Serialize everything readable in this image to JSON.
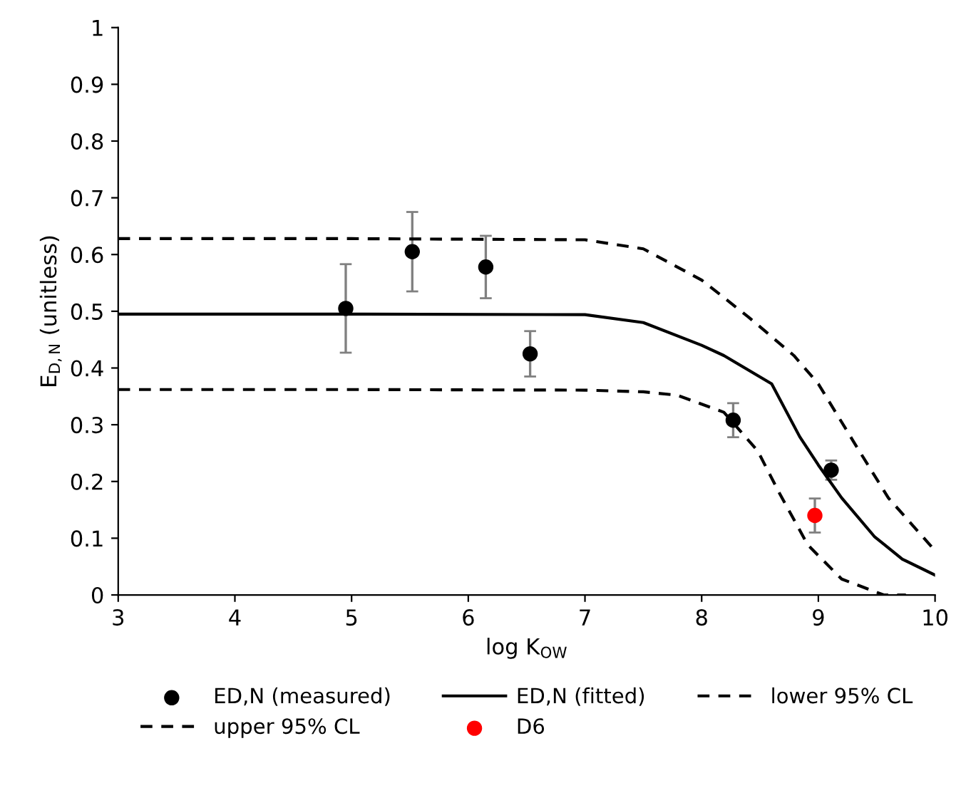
{
  "chart_data": {
    "type": "scatter",
    "xlabel": "log K$_{OW}$",
    "ylabel": "E$_{D,N}$ (unitless)",
    "xlim": [
      3,
      10
    ],
    "ylim": [
      0,
      1
    ],
    "xticks": [
      3,
      4,
      5,
      6,
      7,
      8,
      9,
      10
    ],
    "yticks": [
      0,
      0.1,
      0.2,
      0.3,
      0.4,
      0.5,
      0.6,
      0.7,
      0.8,
      0.9,
      1
    ],
    "grid": false,
    "legend": "bottom",
    "marker": "circle",
    "series": [
      {
        "name": "ED,N (measured)",
        "color": "#000000",
        "x": [
          4.95,
          5.52,
          6.15,
          6.53,
          8.27,
          9.11
        ],
        "values": [
          0.505,
          0.605,
          0.578,
          0.425,
          0.308,
          0.22
        ],
        "errors": [
          0.078,
          0.07,
          0.055,
          0.04,
          0.03,
          0.017
        ]
      },
      {
        "name": "ED,N (fitted)",
        "type": "line",
        "line_style": "solid",
        "marker": "none",
        "color": "#000000",
        "x": [
          3,
          5,
          7,
          7.5,
          8,
          8.19,
          8.6,
          8.84,
          9,
          9.2,
          9.48,
          9.72,
          10
        ],
        "values": [
          0.495,
          0.495,
          0.494,
          0.48,
          0.44,
          0.422,
          0.372,
          0.279,
          0.229,
          0.171,
          0.103,
          0.063,
          0.035
        ]
      },
      {
        "name": "lower 95% CL",
        "type": "line",
        "line_style": "dashed",
        "marker": "none",
        "color": "#000000",
        "x": [
          3,
          5,
          7,
          7.5,
          7.79,
          8.19,
          8.48,
          8.67,
          8.91,
          9.2,
          9.56,
          9.75
        ],
        "values": [
          0.362,
          0.362,
          0.361,
          0.358,
          0.352,
          0.322,
          0.254,
          0.178,
          0.088,
          0.028,
          0.0,
          0.0
        ]
      },
      {
        "name": "upper 95% CL",
        "type": "line",
        "line_style": "dashed",
        "marker": "none",
        "color": "#000000",
        "x": [
          3,
          5,
          7,
          7.5,
          8,
          8.4,
          8.79,
          9,
          9.32,
          9.6,
          10
        ],
        "values": [
          0.628,
          0.628,
          0.626,
          0.61,
          0.555,
          0.49,
          0.422,
          0.372,
          0.264,
          0.171,
          0.078
        ]
      },
      {
        "name": "D6",
        "color": "#ff0000",
        "x": [
          8.97
        ],
        "values": [
          0.14
        ],
        "errors": [
          0.03
        ]
      }
    ]
  }
}
